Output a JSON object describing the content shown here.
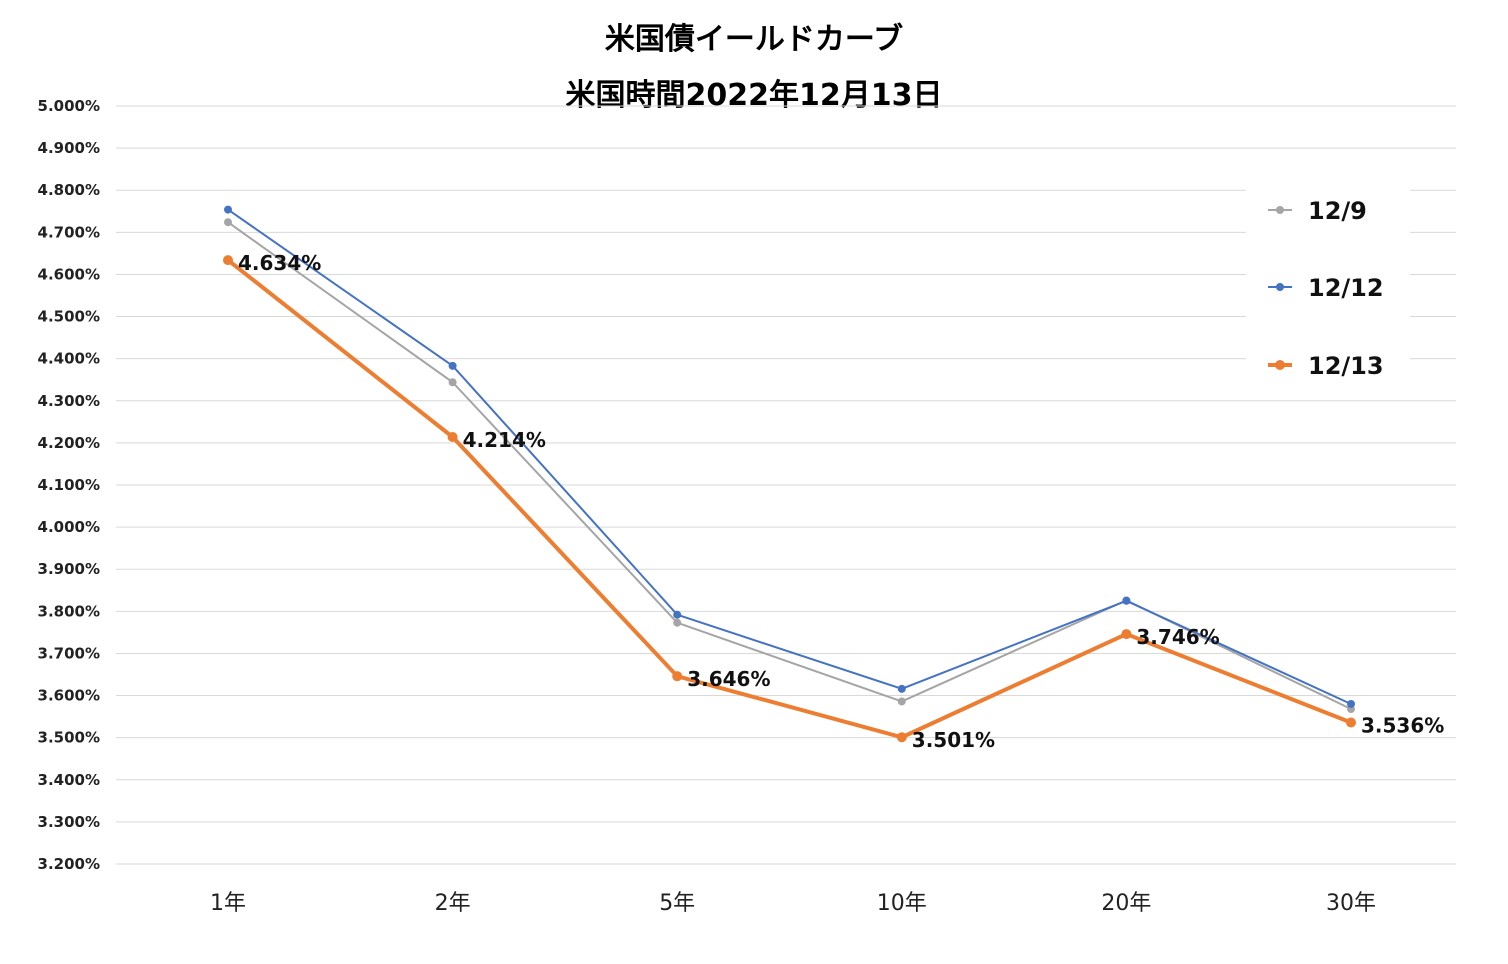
{
  "chart_data": {
    "type": "line",
    "title": "米国債イールドカーブ",
    "subtitle": "米国時間2022年12月13日",
    "categories": [
      "1年",
      "2年",
      "5年",
      "10年",
      "20年",
      "30年"
    ],
    "ylim": [
      3.2,
      5.0
    ],
    "ystep": 0.1,
    "yformat_decimals": 3,
    "grid": true,
    "legend_position": "right",
    "series": [
      {
        "name": "12/9",
        "color": "#a5a5a5",
        "values": [
          4.724,
          4.344,
          3.773,
          3.586,
          3.826,
          3.568
        ],
        "show_labels": false
      },
      {
        "name": "12/12",
        "color": "#4472c4",
        "values": [
          4.754,
          4.383,
          3.792,
          3.616,
          3.825,
          3.58
        ],
        "show_labels": false
      },
      {
        "name": "12/13",
        "color": "#ed7d31",
        "values": [
          4.634,
          4.214,
          3.646,
          3.501,
          3.746,
          3.536
        ],
        "show_labels": true,
        "labels": [
          "4.634%",
          "4.214%",
          "3.646%",
          "3.501%",
          "3.746%",
          "3.536%"
        ]
      }
    ]
  }
}
